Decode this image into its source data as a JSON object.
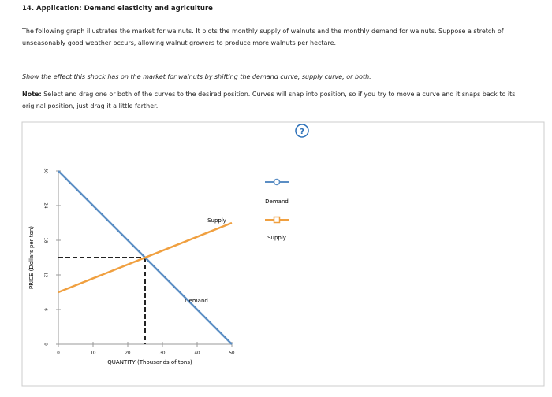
{
  "header": {
    "title": "14. Application: Demand elasticity and agriculture"
  },
  "body": {
    "intro": "The following graph illustrates the market for walnuts. It plots the monthly supply of walnuts and the monthly demand for walnuts. Suppose a stretch of unseasonably good weather occurs, allowing walnut growers to produce more walnuts per hectare.",
    "instruction": "Show the effect this shock has on the market for walnuts by shifting the demand curve, supply curve, or both.",
    "note_label": "Note:",
    "note": "Select and drag one or both of the curves to the desired position. Curves will snap into position, so if you try to move a curve and it snaps back to its original position, just drag it a little farther.",
    "help": "?"
  },
  "chart_data": {
    "type": "line",
    "x_label": "QUANTITY (Thousands of tons)",
    "y_label": "PRICE (Dollars per ton)",
    "xlim": [
      0,
      50
    ],
    "ylim": [
      0,
      30
    ],
    "xticks": [
      0,
      10,
      20,
      30,
      40,
      50
    ],
    "yticks": [
      0,
      6,
      12,
      18,
      24,
      30
    ],
    "series": [
      {
        "name": "Demand",
        "color": "#5b8ec4",
        "x": [
          0,
          50
        ],
        "values": [
          30,
          0
        ]
      },
      {
        "name": "Supply",
        "color": "#f0a040",
        "x": [
          0,
          50
        ],
        "values": [
          9,
          21
        ]
      }
    ],
    "equilibrium": {
      "x": 25,
      "y": 15
    }
  }
}
